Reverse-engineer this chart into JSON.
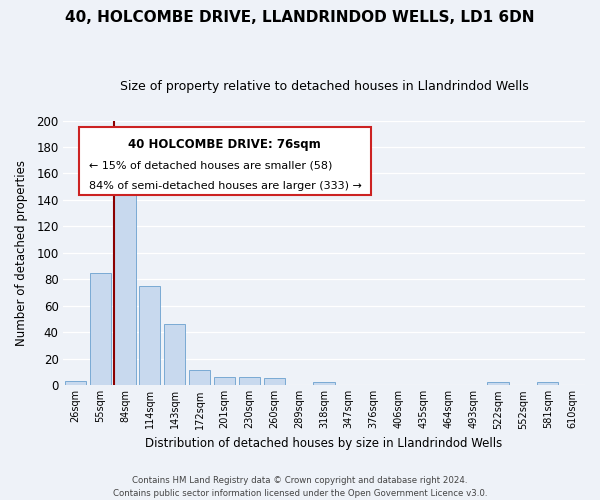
{
  "title": "40, HOLCOMBE DRIVE, LLANDRINDOD WELLS, LD1 6DN",
  "subtitle": "Size of property relative to detached houses in Llandrindod Wells",
  "xlabel": "Distribution of detached houses by size in Llandrindod Wells",
  "ylabel": "Number of detached properties",
  "bar_labels": [
    "26sqm",
    "55sqm",
    "84sqm",
    "114sqm",
    "143sqm",
    "172sqm",
    "201sqm",
    "230sqm",
    "260sqm",
    "289sqm",
    "318sqm",
    "347sqm",
    "376sqm",
    "406sqm",
    "435sqm",
    "464sqm",
    "493sqm",
    "522sqm",
    "552sqm",
    "581sqm",
    "610sqm"
  ],
  "bar_values": [
    3,
    85,
    165,
    75,
    46,
    11,
    6,
    6,
    5,
    0,
    2,
    0,
    0,
    0,
    0,
    0,
    0,
    2,
    0,
    2,
    0
  ],
  "bar_face_color": "#c8d9ee",
  "bar_edge_color": "#7aaad4",
  "annotation_title": "40 HOLCOMBE DRIVE: 76sqm",
  "annotation_line1": "← 15% of detached houses are smaller (58)",
  "annotation_line2": "84% of semi-detached houses are larger (333) →",
  "vline_color": "#8b0000",
  "ylim": [
    0,
    200
  ],
  "yticks": [
    0,
    20,
    40,
    60,
    80,
    100,
    120,
    140,
    160,
    180,
    200
  ],
  "footer1": "Contains HM Land Registry data © Crown copyright and database right 2024.",
  "footer2": "Contains public sector information licensed under the Open Government Licence v3.0.",
  "bg_color": "#eef2f8",
  "grid_color": "#ffffff",
  "ann_box_color": "#cc2222",
  "ann_face_color": "#ffffff"
}
